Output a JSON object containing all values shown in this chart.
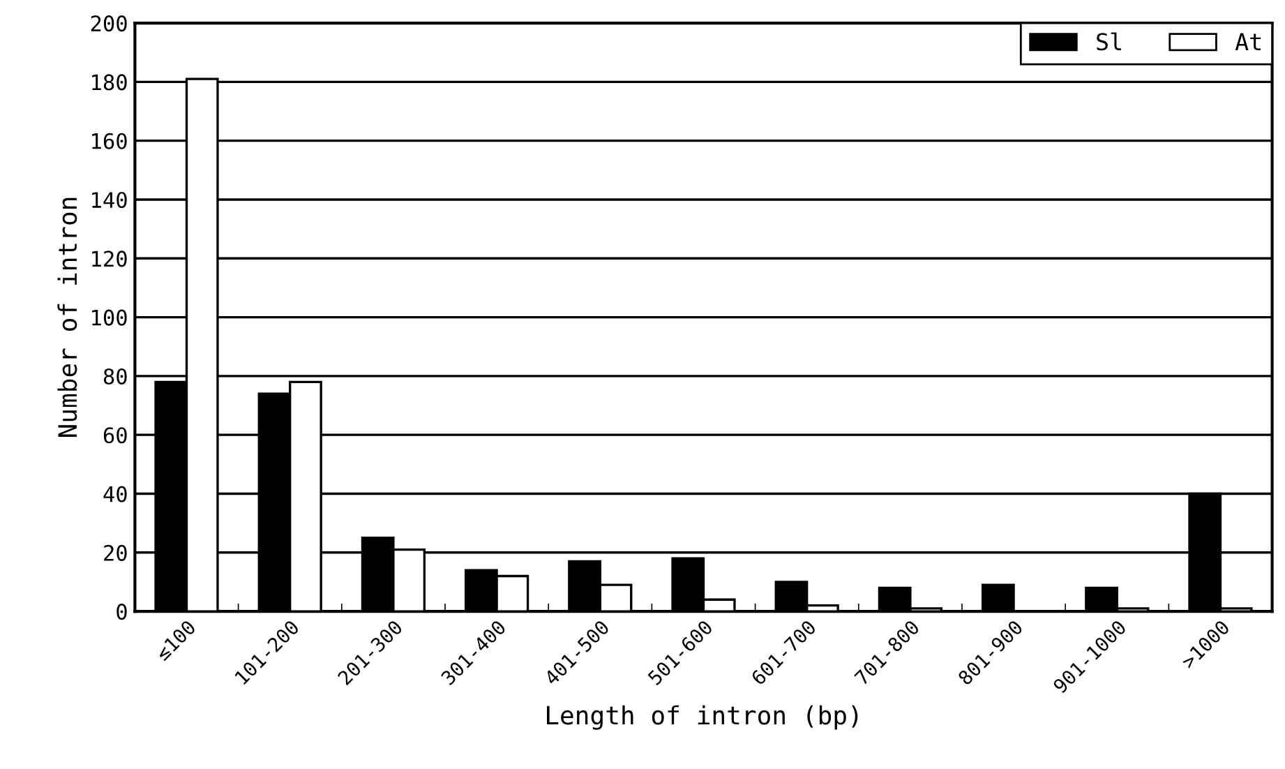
{
  "chart_data": {
    "type": "bar",
    "xlabel": "Length of intron (bp)",
    "ylabel": "Number of intron",
    "categories": [
      "≤100",
      "101-200",
      "201-300",
      "301-400",
      "401-500",
      "501-600",
      "601-700",
      "701-800",
      "801-900",
      "901-1000",
      ">1000"
    ],
    "series": [
      {
        "name": "Sl",
        "color": "#000000",
        "values": [
          78,
          74,
          25,
          14,
          17,
          18,
          10,
          8,
          9,
          8,
          40
        ]
      },
      {
        "name": "At",
        "color": "#ffffff",
        "values": [
          181,
          78,
          21,
          12,
          9,
          4,
          2,
          1,
          0,
          1,
          1
        ]
      }
    ],
    "ylim": [
      0,
      200
    ],
    "yticks": [
      0,
      20,
      40,
      60,
      80,
      100,
      120,
      140,
      160,
      180,
      200
    ],
    "grid": "y",
    "legend": "top right"
  }
}
